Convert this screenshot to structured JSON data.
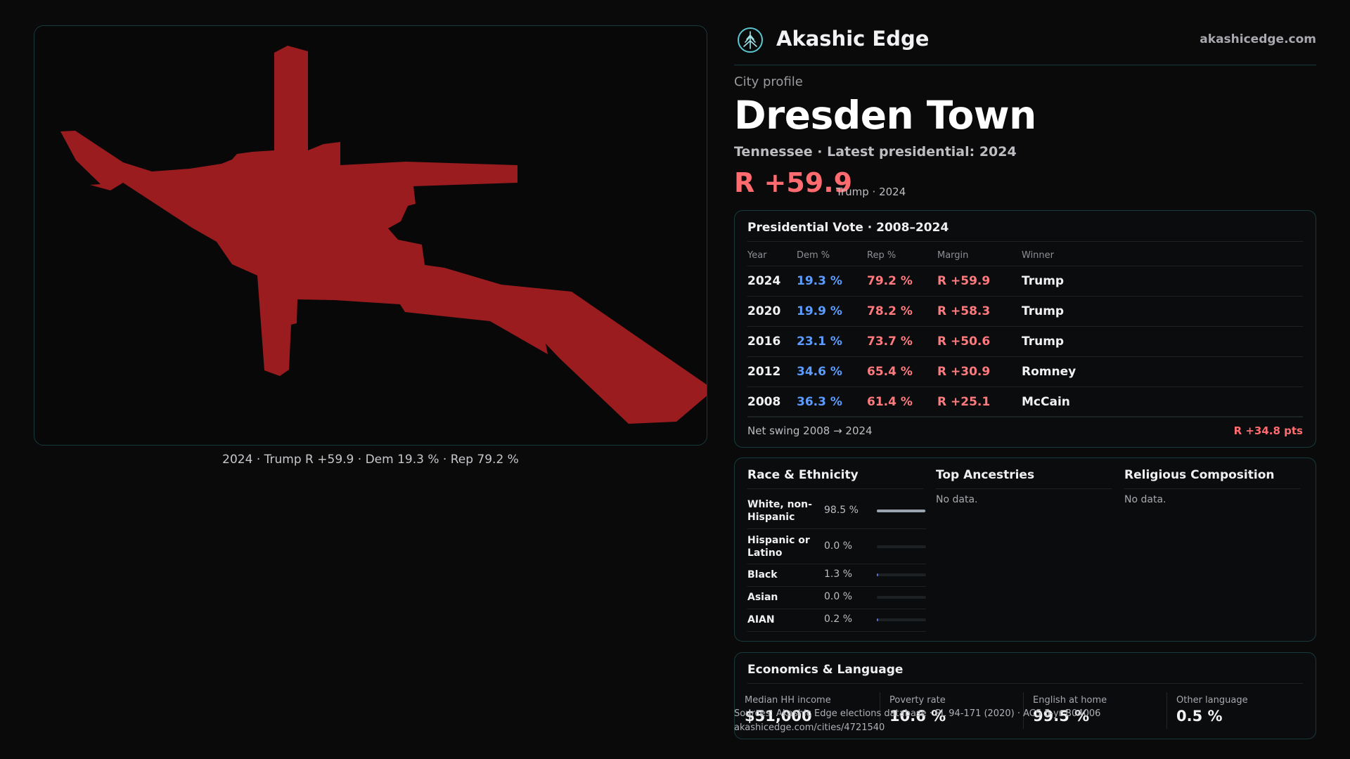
{
  "map": {
    "fill_color": "#9b1c1f",
    "caption": "2024 · Trump R +59.9 · Dem 19.3 % · Rep 79.2 %"
  },
  "brand": {
    "name": "Akashic Edge",
    "url": "akashicedge.com",
    "logo_icon": "tree-logo-icon"
  },
  "profile": {
    "kicker": "City profile",
    "city": "Dresden Town",
    "subline": "Tennessee · Latest presidential: 2024",
    "margin": "R +59.9",
    "margin_note": "Trump · 2024"
  },
  "vote_table": {
    "title": "Presidential Vote · 2008–2024",
    "headers": {
      "year": "Year",
      "dem": "Dem %",
      "rep": "Rep %",
      "margin": "Margin",
      "winner": "Winner"
    },
    "rows": [
      {
        "year": "2024",
        "dem": "19.3 %",
        "rep": "79.2 %",
        "margin": "R +59.9",
        "winner": "Trump"
      },
      {
        "year": "2020",
        "dem": "19.9 %",
        "rep": "78.2 %",
        "margin": "R +58.3",
        "winner": "Trump"
      },
      {
        "year": "2016",
        "dem": "23.1 %",
        "rep": "73.7 %",
        "margin": "R +50.6",
        "winner": "Trump"
      },
      {
        "year": "2012",
        "dem": "34.6 %",
        "rep": "65.4 %",
        "margin": "R +30.9",
        "winner": "Romney"
      },
      {
        "year": "2008",
        "dem": "36.3 %",
        "rep": "61.4 %",
        "margin": "R +25.1",
        "winner": "McCain"
      }
    ],
    "swing_label": "Net swing 2008 → 2024",
    "swing_value": "R +34.8 pts",
    "colors": {
      "dem": "#5d9cff",
      "rep": "#ff7a7e"
    }
  },
  "race": {
    "title": "Race & Ethnicity",
    "rows": [
      {
        "label": "White, non-Hispanic",
        "pct": "98.5 %",
        "share": 0.985
      },
      {
        "label": "Hispanic or Latino",
        "pct": "0.0 %",
        "share": 0.0
      },
      {
        "label": "Black",
        "pct": "1.3 %",
        "share": 0.013
      },
      {
        "label": "Asian",
        "pct": "0.0 %",
        "share": 0.0
      },
      {
        "label": "AIAN",
        "pct": "0.2 %",
        "share": 0.002
      }
    ]
  },
  "ancestries": {
    "title": "Top Ancestries",
    "empty": "No data."
  },
  "religion": {
    "title": "Religious Composition",
    "empty": "No data."
  },
  "economics": {
    "title": "Economics & Language",
    "stats": [
      {
        "label": "Median HH income",
        "value": "$51,000"
      },
      {
        "label": "Poverty rate",
        "value": "10.6 %"
      },
      {
        "label": "English at home",
        "value": "99.5 %"
      },
      {
        "label": "Other language",
        "value": "0.5 %"
      }
    ]
  },
  "source": {
    "line1": "Sources: Akashic Edge elections database · PL 94-171 (2020) · ACS 5-yr B04006",
    "line2": "akashicedge.com/cities/4721540"
  }
}
